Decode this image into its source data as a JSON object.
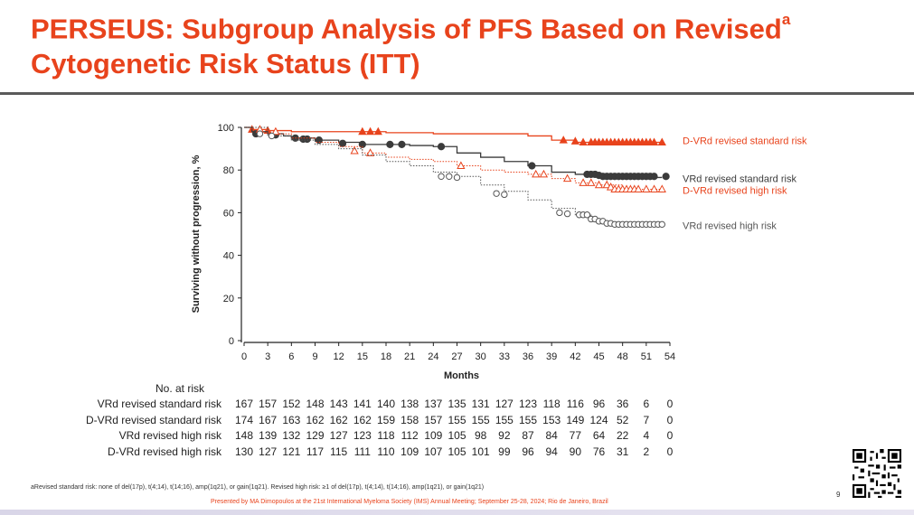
{
  "slide": {
    "title_line1": "PERSEUS: Subgroup Analysis of PFS Based on Revised",
    "title_sup": "a",
    "title_line2": "Cytogenetic Risk Status (ITT)",
    "footnote": "aRevised standard risk: none of del(17p), t(4;14), t(14;16), amp(1q21), or gain(1q21). Revised high risk: ≥1 of del(17p), t(4;14), t(14;16), amp(1q21), or gain(1q21)",
    "presenter": "Presented by MA Dimopoulos at the 21st International Myeloma Society (IMS) Annual Meeting; September 25-28, 2024; Rio de Janeiro, Brazil",
    "slide_number": "9"
  },
  "chart_data": {
    "type": "line",
    "title": "",
    "xlabel": "Months",
    "ylabel": "Surviving without progression, %",
    "xlim": [
      0,
      54
    ],
    "ylim": [
      0,
      100
    ],
    "xticks": [
      0,
      3,
      6,
      9,
      12,
      15,
      18,
      21,
      24,
      27,
      30,
      33,
      36,
      39,
      42,
      45,
      48,
      51,
      54
    ],
    "yticks": [
      0,
      20,
      40,
      60,
      80,
      100
    ],
    "series": [
      {
        "name": "D-VRd revised standard risk",
        "color": "#e8431c",
        "dash": "solid",
        "marker": "triangle-filled",
        "points": [
          [
            0,
            100
          ],
          [
            1,
            99
          ],
          [
            2,
            99
          ],
          [
            3,
            98.5
          ],
          [
            6,
            98
          ],
          [
            9,
            98
          ],
          [
            12,
            98
          ],
          [
            15,
            98
          ],
          [
            18,
            97.5
          ],
          [
            21,
            97.5
          ],
          [
            24,
            97
          ],
          [
            27,
            97
          ],
          [
            30,
            97
          ],
          [
            33,
            97
          ],
          [
            36,
            96
          ],
          [
            39,
            94
          ],
          [
            42,
            93
          ],
          [
            45,
            93
          ],
          [
            48,
            93
          ],
          [
            51,
            93
          ],
          [
            53,
            93
          ]
        ],
        "censors": [
          [
            1,
            99
          ],
          [
            3,
            98.5
          ],
          [
            15,
            98
          ],
          [
            16,
            98
          ],
          [
            17,
            98
          ],
          [
            40.5,
            94
          ],
          [
            42,
            93.5
          ],
          [
            43,
            93
          ],
          [
            44,
            93
          ],
          [
            44.5,
            93
          ],
          [
            45,
            93
          ],
          [
            45.5,
            93
          ],
          [
            46,
            93
          ],
          [
            46.5,
            93
          ],
          [
            47,
            93
          ],
          [
            47.5,
            93
          ],
          [
            48,
            93
          ],
          [
            48.5,
            93
          ],
          [
            49,
            93
          ],
          [
            49.5,
            93
          ],
          [
            50,
            93
          ],
          [
            50.5,
            93
          ],
          [
            51,
            93
          ],
          [
            51.5,
            93
          ],
          [
            52,
            93
          ],
          [
            53,
            93
          ]
        ]
      },
      {
        "name": "VRd revised standard risk",
        "color": "#3b3b3b",
        "dash": "solid",
        "marker": "circle-filled",
        "points": [
          [
            0,
            100
          ],
          [
            1,
            98
          ],
          [
            3,
            97
          ],
          [
            5,
            96
          ],
          [
            6,
            95
          ],
          [
            9,
            94
          ],
          [
            12,
            93
          ],
          [
            15,
            92
          ],
          [
            18,
            92
          ],
          [
            21,
            91.5
          ],
          [
            24,
            91
          ],
          [
            27,
            88
          ],
          [
            30,
            86
          ],
          [
            33,
            84
          ],
          [
            36,
            82
          ],
          [
            39,
            79
          ],
          [
            42,
            78
          ],
          [
            45,
            77
          ],
          [
            48,
            77
          ],
          [
            51,
            76.5
          ],
          [
            53,
            76.5
          ]
        ],
        "censors": [
          [
            1.5,
            97
          ],
          [
            4,
            96.5
          ],
          [
            6.5,
            95
          ],
          [
            7.5,
            94.5
          ],
          [
            8,
            94.5
          ],
          [
            9.5,
            94
          ],
          [
            12.5,
            92.5
          ],
          [
            15,
            92
          ],
          [
            18.5,
            92
          ],
          [
            20,
            92
          ],
          [
            25,
            91
          ],
          [
            36.5,
            82
          ],
          [
            43.5,
            78
          ],
          [
            44,
            78
          ],
          [
            44.5,
            78
          ],
          [
            45,
            77.5
          ],
          [
            45.5,
            77
          ],
          [
            46,
            77
          ],
          [
            46.5,
            77
          ],
          [
            47,
            77
          ],
          [
            47.5,
            77
          ],
          [
            48,
            77
          ],
          [
            48.5,
            77
          ],
          [
            49,
            77
          ],
          [
            49.5,
            77
          ],
          [
            50,
            77
          ],
          [
            50.5,
            77
          ],
          [
            51,
            77
          ],
          [
            51.5,
            77
          ],
          [
            52,
            77
          ],
          [
            53.5,
            77
          ]
        ]
      },
      {
        "name": "D-VRd revised high risk",
        "color": "#e8431c",
        "dash": "dotted",
        "marker": "triangle-open",
        "points": [
          [
            0,
            100
          ],
          [
            1,
            99
          ],
          [
            3,
            97
          ],
          [
            6,
            95
          ],
          [
            9,
            93
          ],
          [
            12,
            91
          ],
          [
            15,
            88
          ],
          [
            18,
            86
          ],
          [
            21,
            85
          ],
          [
            24,
            84
          ],
          [
            27,
            82
          ],
          [
            30,
            80
          ],
          [
            33,
            79
          ],
          [
            36,
            78
          ],
          [
            39,
            76
          ],
          [
            42,
            74
          ],
          [
            45,
            73
          ],
          [
            48,
            71
          ],
          [
            51,
            71
          ],
          [
            53,
            71
          ]
        ],
        "censors": [
          [
            2,
            99
          ],
          [
            4,
            98
          ],
          [
            14,
            89
          ],
          [
            16,
            88
          ],
          [
            27.5,
            82
          ],
          [
            37,
            78
          ],
          [
            38,
            78
          ],
          [
            41,
            76
          ],
          [
            43,
            74
          ],
          [
            44,
            74
          ],
          [
            45,
            73
          ],
          [
            46,
            73
          ],
          [
            46.5,
            72
          ],
          [
            47,
            71
          ],
          [
            47.5,
            71
          ],
          [
            48,
            71
          ],
          [
            48.5,
            71
          ],
          [
            49,
            71
          ],
          [
            49.5,
            71
          ],
          [
            50,
            71
          ],
          [
            51,
            71
          ],
          [
            52,
            71
          ],
          [
            53,
            71
          ]
        ]
      },
      {
        "name": "VRd revised high risk",
        "color": "#555555",
        "dash": "dotted",
        "marker": "circle-open",
        "points": [
          [
            0,
            100
          ],
          [
            3,
            96
          ],
          [
            6,
            94
          ],
          [
            9,
            92
          ],
          [
            12,
            90
          ],
          [
            15,
            87
          ],
          [
            18,
            84
          ],
          [
            21,
            82
          ],
          [
            24,
            79
          ],
          [
            27,
            77
          ],
          [
            30,
            73
          ],
          [
            33,
            70
          ],
          [
            36,
            66
          ],
          [
            39,
            62
          ],
          [
            42,
            59
          ],
          [
            44,
            57
          ],
          [
            45,
            56
          ],
          [
            46,
            55
          ],
          [
            48,
            54.5
          ],
          [
            51,
            54.5
          ],
          [
            53,
            54.5
          ]
        ],
        "censors": [
          [
            2,
            97
          ],
          [
            3.5,
            96
          ],
          [
            25,
            77
          ],
          [
            26,
            77
          ],
          [
            27,
            76.5
          ],
          [
            32,
            69
          ],
          [
            33,
            68.5
          ],
          [
            40,
            60
          ],
          [
            41,
            59.5
          ],
          [
            42.5,
            59
          ],
          [
            43,
            59
          ],
          [
            43.5,
            59
          ],
          [
            44,
            57
          ],
          [
            44.5,
            57
          ],
          [
            45,
            56
          ],
          [
            45.5,
            56
          ],
          [
            46,
            55
          ],
          [
            46.5,
            55
          ],
          [
            47,
            54.5
          ],
          [
            47.5,
            54.5
          ],
          [
            48,
            54.5
          ],
          [
            48.5,
            54.5
          ],
          [
            49,
            54.5
          ],
          [
            49.5,
            54.5
          ],
          [
            50,
            54.5
          ],
          [
            50.5,
            54.5
          ],
          [
            51,
            54.5
          ],
          [
            51.5,
            54.5
          ],
          [
            52,
            54.5
          ],
          [
            52.5,
            54.5
          ],
          [
            53,
            54.5
          ]
        ]
      }
    ],
    "at_risk": {
      "header": "No. at risk",
      "times": [
        0,
        3,
        6,
        9,
        12,
        15,
        18,
        21,
        24,
        27,
        30,
        33,
        36,
        39,
        42,
        45,
        48,
        51,
        54
      ],
      "rows": [
        {
          "label": "VRd revised standard risk",
          "values": [
            167,
            157,
            152,
            148,
            143,
            141,
            140,
            138,
            137,
            135,
            131,
            127,
            123,
            118,
            116,
            96,
            36,
            6,
            0
          ]
        },
        {
          "label": "D-VRd revised standard risk",
          "values": [
            174,
            167,
            163,
            162,
            162,
            162,
            159,
            158,
            157,
            155,
            155,
            155,
            155,
            153,
            149,
            124,
            52,
            7,
            0
          ]
        },
        {
          "label": "VRd revised high risk",
          "values": [
            148,
            139,
            132,
            129,
            127,
            123,
            118,
            112,
            109,
            105,
            98,
            92,
            87,
            84,
            77,
            64,
            22,
            4,
            0
          ]
        },
        {
          "label": "D-VRd revised high risk",
          "values": [
            130,
            127,
            121,
            117,
            115,
            111,
            110,
            109,
            107,
            105,
            101,
            99,
            96,
            94,
            90,
            76,
            31,
            2,
            0
          ]
        }
      ]
    }
  }
}
